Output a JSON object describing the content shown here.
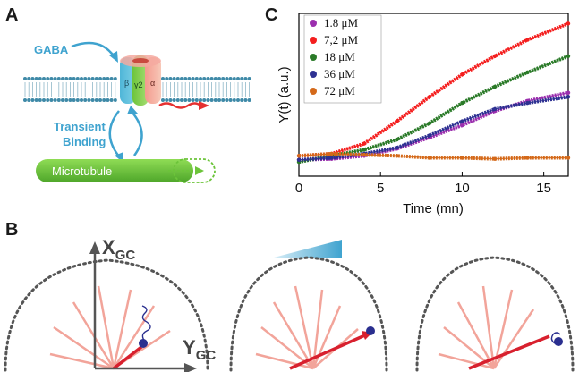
{
  "panels": {
    "a": {
      "letter": "A",
      "gaba_label": "GABA",
      "subunits": [
        "β",
        "γ2",
        "α"
      ],
      "binding_label_line1": "Transient",
      "binding_label_line2": "Binding",
      "microtubule_label": "Microtubule",
      "colors": {
        "label_blue": "#3fa3cf",
        "microtubule_green": "#6cc43a",
        "arrow_red": "#e53030"
      }
    },
    "b": {
      "letter": "B",
      "axis_x_main": "X",
      "axis_x_sub": "GC",
      "axis_y_main": "Y",
      "axis_y_sub": "GC",
      "colors": {
        "ray_pink": "#f2a49a",
        "ray_red": "#d8202e",
        "receptor_blue": "#2a2f8f",
        "gradient_blue": "#3fa3cf"
      }
    },
    "c": {
      "letter": "C"
    }
  },
  "chart_data": {
    "type": "line",
    "title": "",
    "xlabel": "Time (mn)",
    "ylabel": "Y(t) (a.u.)",
    "xlim": [
      0,
      16.5
    ],
    "ylim": [
      -0.8,
      7.2
    ],
    "xticks": [
      "0",
      "5",
      "10",
      "15"
    ],
    "legend_position": "top-left",
    "series": [
      {
        "name": "1.8 μM",
        "color": "#9b2fae",
        "x": [
          0,
          2,
          4,
          6,
          8,
          10,
          12,
          14,
          16.5
        ],
        "y": [
          0,
          0.05,
          0.2,
          0.55,
          1.1,
          1.7,
          2.4,
          2.9,
          3.3
        ]
      },
      {
        "name": "7,2 μM",
        "color": "#f41e1e",
        "x": [
          0,
          2,
          4,
          6,
          8,
          10,
          12,
          14,
          16.5
        ],
        "y": [
          0.2,
          0.3,
          0.8,
          1.9,
          3.1,
          4.2,
          5.1,
          5.9,
          6.7
        ]
      },
      {
        "name": "18 μM",
        "color": "#2a7a28",
        "x": [
          0,
          2,
          4,
          6,
          8,
          10,
          12,
          14,
          16.5
        ],
        "y": [
          -0.1,
          0.2,
          0.5,
          1.0,
          1.8,
          2.8,
          3.6,
          4.3,
          5.1
        ]
      },
      {
        "name": "36 μM",
        "color": "#2e3192",
        "x": [
          0,
          2,
          4,
          6,
          8,
          10,
          12,
          14,
          16.5
        ],
        "y": [
          0,
          0.1,
          0.3,
          0.6,
          1.2,
          1.9,
          2.5,
          2.8,
          3.1
        ]
      },
      {
        "name": "72 μM",
        "color": "#d4691a",
        "x": [
          0,
          2,
          4,
          6,
          8,
          10,
          12,
          14,
          16.5
        ],
        "y": [
          0.2,
          0.3,
          0.25,
          0.2,
          0.1,
          0.1,
          0.05,
          0.1,
          0.1
        ]
      }
    ]
  }
}
